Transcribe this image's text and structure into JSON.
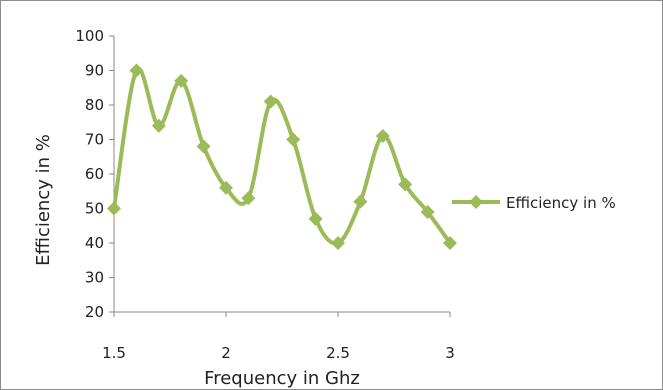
{
  "chart_data": {
    "type": "line",
    "title": "",
    "xlabel": "Frequency in Ghz",
    "ylabel": "Efficiency in %",
    "xlim": [
      1.5,
      3
    ],
    "ylim": [
      20,
      100
    ],
    "x_ticks": [
      1.5,
      2,
      2.5,
      3
    ],
    "x_tick_labels": [
      "1.5",
      "2",
      "2.5",
      "3"
    ],
    "y_ticks": [
      20,
      30,
      40,
      50,
      60,
      70,
      80,
      90,
      100
    ],
    "y_tick_labels": [
      "20",
      "30",
      "40",
      "50",
      "60",
      "70",
      "80",
      "90",
      "100"
    ],
    "grid": false,
    "legend_position": "right",
    "smooth": true,
    "marker": "diamond",
    "series": [
      {
        "name": "Efficiency in %",
        "color": "#9bbb59",
        "x": [
          1.5,
          1.6,
          1.7,
          1.8,
          1.9,
          2.0,
          2.1,
          2.2,
          2.3,
          2.4,
          2.5,
          2.6,
          2.7,
          2.8,
          2.9,
          3.0
        ],
        "values": [
          50,
          90,
          74,
          87,
          68,
          56,
          53,
          81,
          70,
          47,
          40,
          52,
          71,
          57,
          49,
          40
        ]
      }
    ]
  }
}
